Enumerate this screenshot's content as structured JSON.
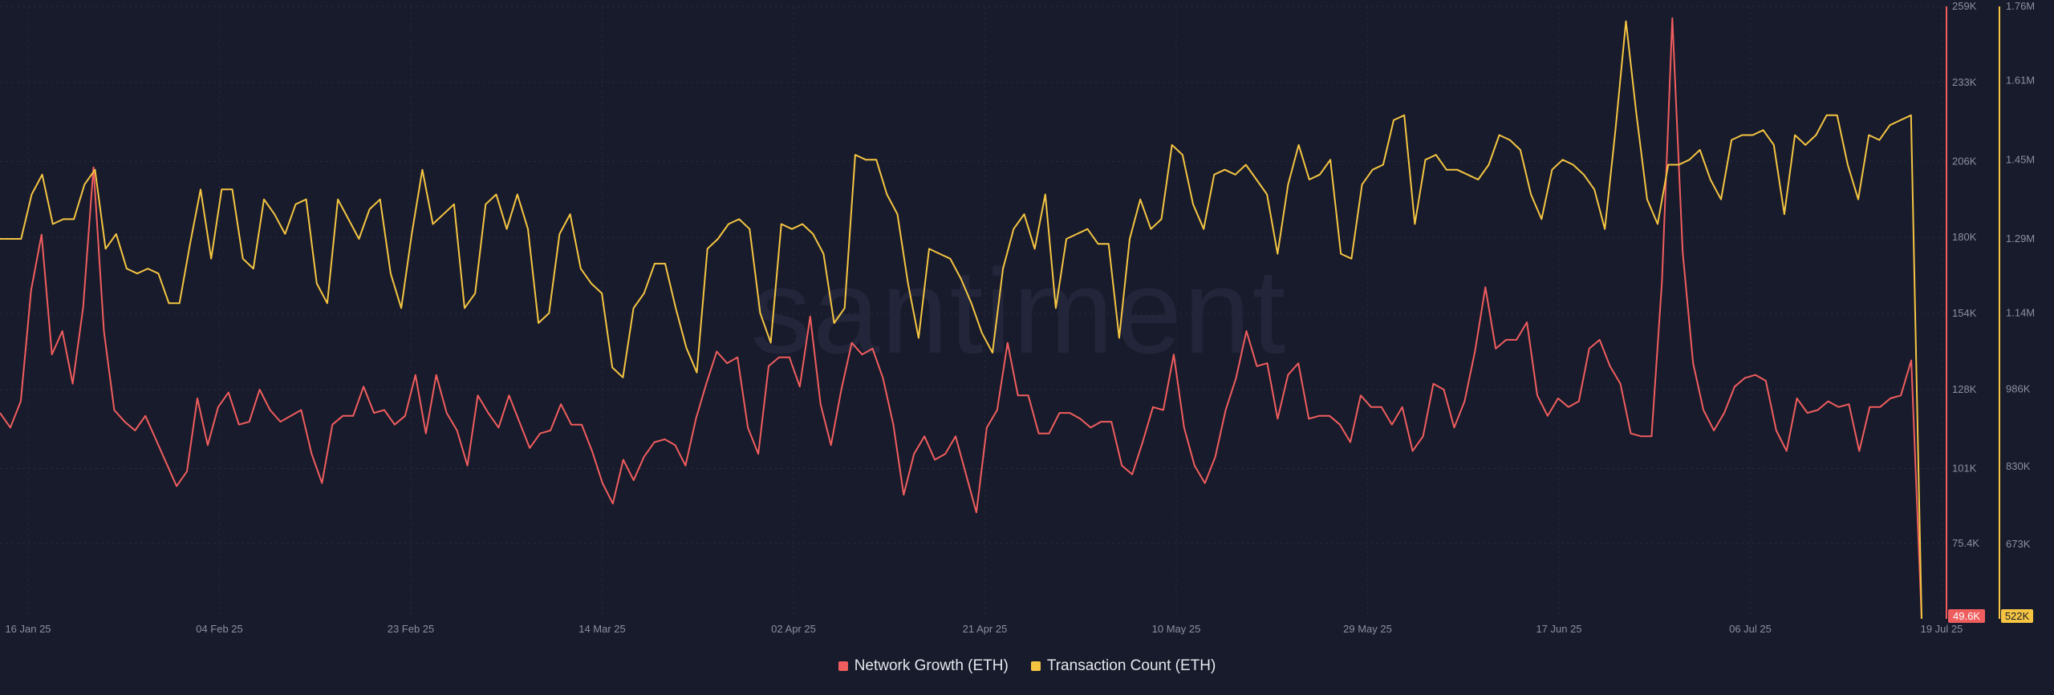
{
  "chart_data": {
    "type": "line",
    "watermark": "santiment",
    "x_tick_labels": [
      "16 Jan 25",
      "04 Feb 25",
      "23 Feb 25",
      "14 Mar 25",
      "02 Apr 25",
      "21 Apr 25",
      "10 May 25",
      "29 May 25",
      "17 Jun 25",
      "06 Jul 25",
      "19 Jul 25"
    ],
    "x_range": [
      "2025-01-16",
      "2025-07-19"
    ],
    "legend_placement": "bottom-center",
    "grid": true,
    "axes": {
      "network_growth": {
        "position": "right",
        "tick_labels": [
          "259K",
          "233K",
          "206K",
          "180K",
          "154K",
          "128K",
          "101K",
          "75.4K"
        ],
        "tick_values": [
          259000,
          233000,
          206000,
          180000,
          154000,
          128000,
          101000,
          75400
        ],
        "range": [
          49600,
          259000
        ],
        "current_value_label": "49.6K",
        "color": "#f05d5e"
      },
      "transaction_count": {
        "position": "right",
        "tick_labels": [
          "1.76M",
          "1.61M",
          "1.45M",
          "1.29M",
          "1.14M",
          "986K",
          "830K",
          "673K"
        ],
        "tick_values": [
          1760000,
          1610000,
          1450000,
          1290000,
          1140000,
          986000,
          830000,
          673000
        ],
        "range": [
          522000,
          1760000
        ],
        "current_value_label": "522K",
        "color": "#f5c542"
      }
    },
    "series": [
      {
        "name": "Network Growth (ETH)",
        "axis": "network_growth",
        "color": "#f05d5e",
        "values": [
          120000,
          115000,
          124000,
          162000,
          181000,
          140000,
          148000,
          130000,
          156000,
          204000,
          148000,
          121000,
          117000,
          114000,
          119000,
          111000,
          103000,
          95000,
          100000,
          125000,
          109000,
          122000,
          127000,
          116000,
          117000,
          128000,
          121000,
          117000,
          119000,
          121000,
          106000,
          96000,
          116000,
          119000,
          119000,
          129000,
          120000,
          121000,
          116000,
          119000,
          133000,
          113000,
          133000,
          120000,
          114000,
          102000,
          126000,
          120000,
          115000,
          126000,
          117000,
          108000,
          113000,
          114000,
          123000,
          116000,
          116000,
          107000,
          96000,
          89000,
          104000,
          97000,
          105000,
          110000,
          111000,
          109000,
          102000,
          118000,
          130000,
          141000,
          137000,
          139000,
          115000,
          106000,
          136000,
          139000,
          139000,
          129000,
          153000,
          123000,
          109000,
          128000,
          144000,
          140000,
          142000,
          132000,
          116000,
          92000,
          106000,
          112000,
          104000,
          106000,
          112000,
          99000,
          86000,
          115000,
          121000,
          144000,
          126000,
          126000,
          113000,
          113000,
          120000,
          120000,
          118000,
          115000,
          117000,
          117000,
          102000,
          99000,
          110000,
          122000,
          121000,
          140000,
          115000,
          102000,
          96000,
          105000,
          121000,
          132000,
          148000,
          136000,
          137000,
          118000,
          133000,
          137000,
          118000,
          119000,
          119000,
          116000,
          110000,
          126000,
          122000,
          122000,
          116000,
          122000,
          107000,
          112000,
          130000,
          128000,
          115000,
          124000,
          141000,
          163000,
          142000,
          145000,
          145000,
          151000,
          126000,
          119000,
          125000,
          122000,
          124000,
          142000,
          145000,
          136000,
          130000,
          113000,
          112000,
          112000,
          165000,
          255000,
          175000,
          137000,
          121000,
          114000,
          120000,
          129000,
          132000,
          133000,
          131000,
          114000,
          107000,
          125000,
          120000,
          121000,
          124000,
          122000,
          123000,
          107000,
          122000,
          122000,
          125000,
          126000,
          138000,
          49600
        ]
      },
      {
        "name": "Transaction Count (ETH)",
        "axis": "transaction_count",
        "color": "#f5c542",
        "values": [
          1290000,
          1290000,
          1290000,
          1380000,
          1420000,
          1320000,
          1330000,
          1330000,
          1400000,
          1430000,
          1270000,
          1300000,
          1230000,
          1220000,
          1230000,
          1220000,
          1160000,
          1160000,
          1280000,
          1390000,
          1250000,
          1390000,
          1390000,
          1250000,
          1230000,
          1370000,
          1340000,
          1300000,
          1360000,
          1370000,
          1200000,
          1160000,
          1370000,
          1330000,
          1290000,
          1350000,
          1370000,
          1220000,
          1150000,
          1300000,
          1430000,
          1320000,
          1340000,
          1360000,
          1150000,
          1180000,
          1360000,
          1380000,
          1310000,
          1380000,
          1310000,
          1120000,
          1140000,
          1300000,
          1340000,
          1230000,
          1200000,
          1180000,
          1030000,
          1010000,
          1150000,
          1180000,
          1240000,
          1240000,
          1150000,
          1070000,
          1020000,
          1270000,
          1290000,
          1320000,
          1330000,
          1310000,
          1140000,
          1080000,
          1320000,
          1310000,
          1320000,
          1300000,
          1260000,
          1120000,
          1150000,
          1460000,
          1450000,
          1450000,
          1380000,
          1340000,
          1200000,
          1090000,
          1270000,
          1260000,
          1250000,
          1210000,
          1160000,
          1100000,
          1060000,
          1230000,
          1310000,
          1340000,
          1270000,
          1380000,
          1150000,
          1290000,
          1300000,
          1310000,
          1280000,
          1280000,
          1090000,
          1290000,
          1370000,
          1310000,
          1330000,
          1480000,
          1460000,
          1360000,
          1310000,
          1420000,
          1430000,
          1420000,
          1440000,
          1410000,
          1380000,
          1260000,
          1400000,
          1480000,
          1410000,
          1420000,
          1450000,
          1260000,
          1250000,
          1400000,
          1430000,
          1440000,
          1530000,
          1540000,
          1320000,
          1450000,
          1460000,
          1430000,
          1430000,
          1420000,
          1410000,
          1440000,
          1500000,
          1490000,
          1470000,
          1380000,
          1330000,
          1430000,
          1450000,
          1440000,
          1420000,
          1390000,
          1310000,
          1510000,
          1730000,
          1540000,
          1370000,
          1320000,
          1440000,
          1440000,
          1450000,
          1470000,
          1410000,
          1370000,
          1490000,
          1500000,
          1500000,
          1510000,
          1480000,
          1340000,
          1500000,
          1480000,
          1500000,
          1540000,
          1540000,
          1440000,
          1370000,
          1500000,
          1490000,
          1520000,
          1530000,
          1540000,
          522000
        ]
      }
    ]
  }
}
